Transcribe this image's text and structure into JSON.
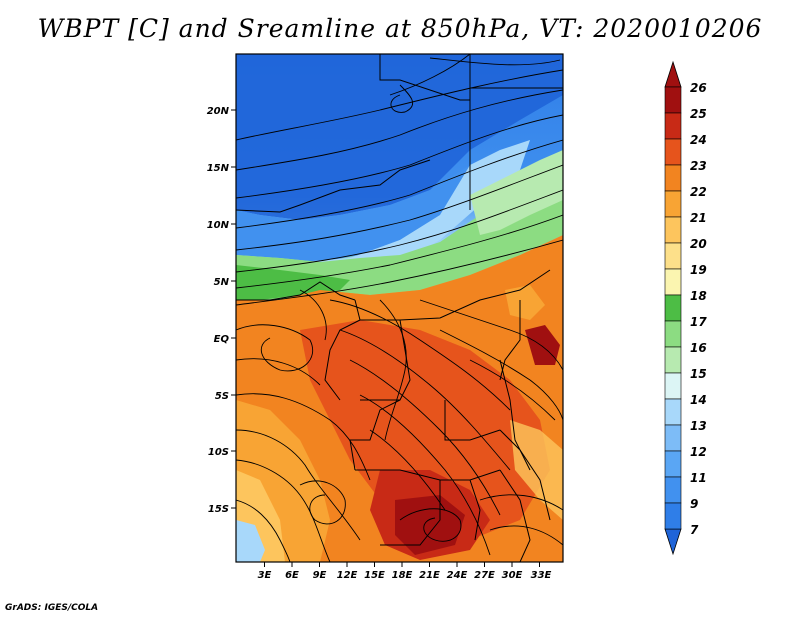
{
  "title": "WBPT [C] and Sreamline at 850hPa, VT: 2020010206",
  "credit": "GrADS: IGES/COLA",
  "map": {
    "lon_ticks": [
      "3E",
      "6E",
      "9E",
      "12E",
      "15E",
      "18E",
      "21E",
      "24E",
      "27E",
      "30E",
      "33E"
    ],
    "lat_ticks": [
      "20N",
      "15N",
      "10N",
      "5N",
      "EQ",
      "5S",
      "10S",
      "15S"
    ]
  },
  "colorbar": {
    "labels": [
      "7",
      "9",
      "11",
      "12",
      "13",
      "14",
      "15",
      "16",
      "17",
      "18",
      "19",
      "20",
      "21",
      "22",
      "23",
      "24",
      "25",
      "26"
    ],
    "colors": [
      "#1f64d8",
      "#2f7ee8",
      "#4191ef",
      "#5aa6f4",
      "#7dbcf7",
      "#a8d8fa",
      "#dcf5f5",
      "#b7eab0",
      "#8cdc82",
      "#4dbd45",
      "#fbf5b0",
      "#fde08a",
      "#fdc55d",
      "#f8a434",
      "#f28420",
      "#e6541c",
      "#c82a16",
      "#a01010"
    ]
  }
}
